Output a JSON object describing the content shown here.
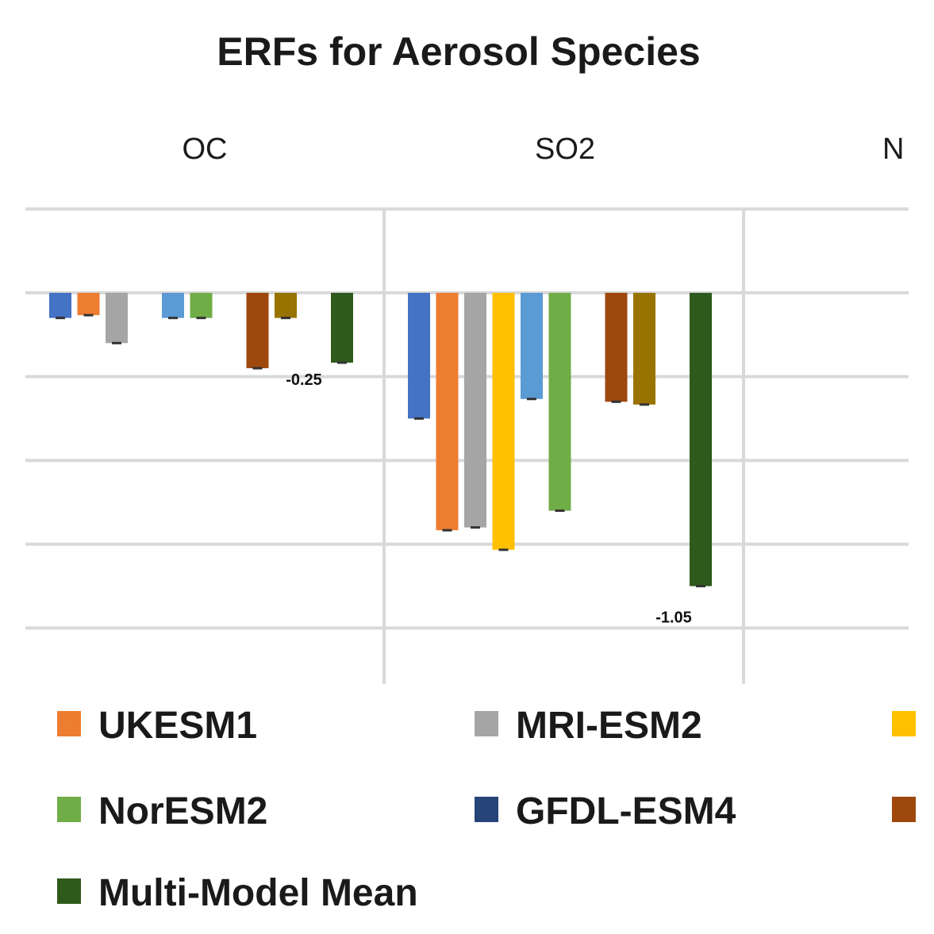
{
  "chart_data": {
    "type": "bar",
    "title": "ERFs for Aerosol Species",
    "categories": [
      "OC",
      "SO2",
      "N"
    ],
    "ylim": [
      -1.4,
      0.3
    ],
    "y_gridlines": [
      0.3,
      0,
      -0.3,
      -0.6,
      -0.9,
      -1.2
    ],
    "grid": true,
    "legend_position": "bottom",
    "series": [
      {
        "name": "",
        "color": "#4472c4",
        "values": [
          -0.09,
          -0.45,
          null
        ]
      },
      {
        "name": "UKESM1",
        "color": "#ed7d31",
        "values": [
          -0.08,
          -0.85,
          null
        ]
      },
      {
        "name": "MRI-ESM2",
        "color": "#a5a5a5",
        "values": [
          -0.18,
          -0.84,
          null
        ]
      },
      {
        "name": "",
        "color": "#ffc000",
        "values": [
          null,
          -0.92,
          null
        ]
      },
      {
        "name": "",
        "color": "#5b9bd5",
        "values": [
          -0.09,
          -0.38,
          null
        ]
      },
      {
        "name": "NorESM2",
        "color": "#70ad47",
        "values": [
          -0.09,
          -0.78,
          null
        ]
      },
      {
        "name": "GFDL-ESM4",
        "color": "#264478",
        "values": [
          null,
          null,
          null
        ]
      },
      {
        "name": "",
        "color": "#9e480e",
        "values": [
          -0.27,
          -0.39,
          null
        ]
      },
      {
        "name": "",
        "color": "#997300",
        "values": [
          -0.09,
          -0.4,
          null
        ]
      },
      {
        "name": "",
        "color": "#43682b",
        "values": [
          null,
          null,
          null
        ]
      },
      {
        "name": "Multi-Model Mean",
        "color": "#2e5a1c",
        "values": [
          -0.25,
          -1.05,
          null
        ]
      }
    ],
    "data_labels": {
      "OC": "-0.25",
      "SO2": "-1.05"
    },
    "legend": [
      {
        "name": "UKESM1",
        "color": "#ed7d31"
      },
      {
        "name": "MRI-ESM2",
        "color": "#a5a5a5"
      },
      {
        "name": "",
        "color": "#ffc000"
      },
      {
        "name": "NorESM2",
        "color": "#70ad47"
      },
      {
        "name": "GFDL-ESM4",
        "color": "#264478"
      },
      {
        "name": "",
        "color": "#9e480e"
      },
      {
        "name": "Multi-Model Mean",
        "color": "#2e5a1c"
      }
    ]
  }
}
